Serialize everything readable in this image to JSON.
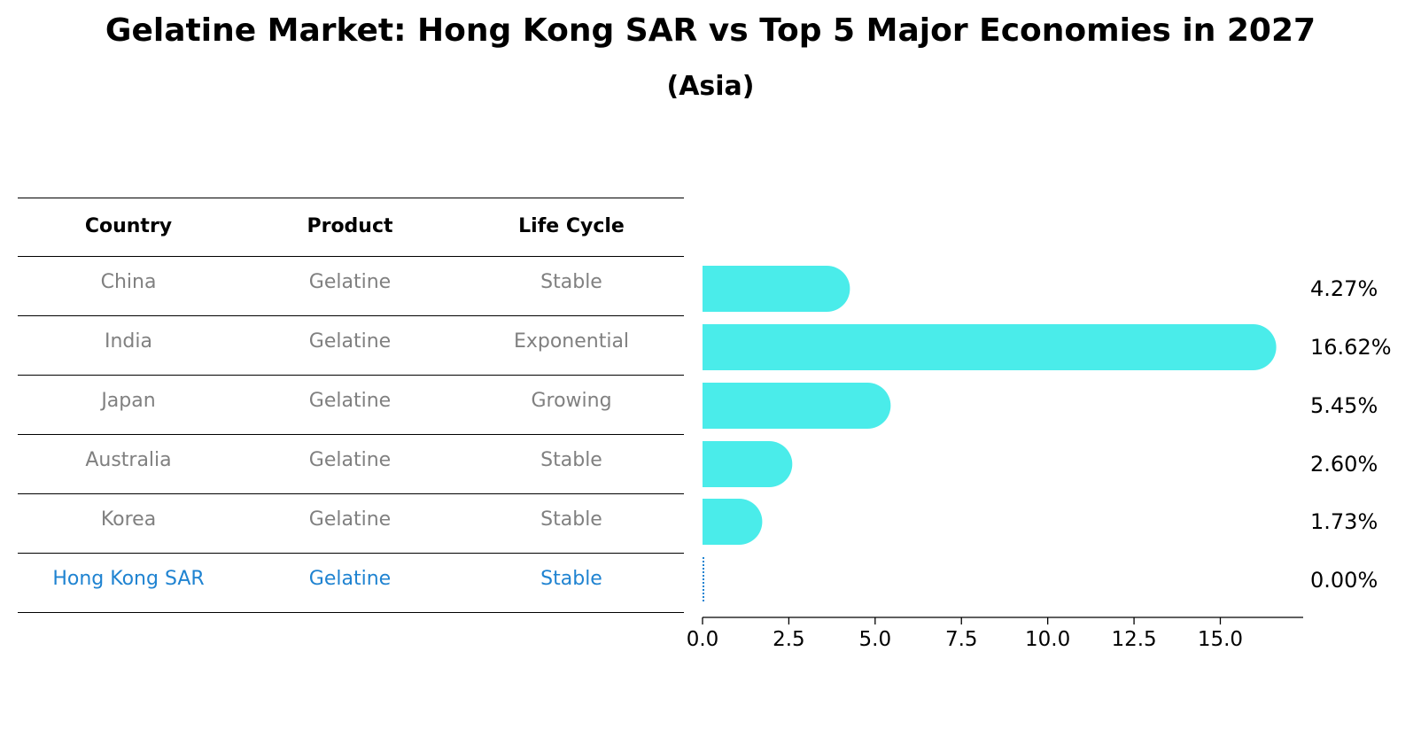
{
  "title": "Gelatine Market: Hong Kong SAR vs Top 5 Major Economies in 2027",
  "subtitle": "(Asia)",
  "table": {
    "headers": [
      "Country",
      "Product",
      "Life Cycle"
    ],
    "rows": [
      {
        "country": "China",
        "product": "Gelatine",
        "life_cycle": "Stable"
      },
      {
        "country": "India",
        "product": "Gelatine",
        "life_cycle": "Exponential"
      },
      {
        "country": "Japan",
        "product": "Gelatine",
        "life_cycle": "Growing"
      },
      {
        "country": "Australia",
        "product": "Gelatine",
        "life_cycle": "Stable"
      },
      {
        "country": "Korea",
        "product": "Gelatine",
        "life_cycle": "Stable"
      },
      {
        "country": "Hong Kong SAR",
        "product": "Gelatine",
        "life_cycle": "Stable"
      }
    ],
    "highlight_color": "#1f83d1",
    "text_color": "#808080"
  },
  "chart_data": {
    "type": "bar",
    "orientation": "horizontal",
    "categories": [
      "China",
      "India",
      "Japan",
      "Australia",
      "Korea",
      "Hong Kong SAR"
    ],
    "values": [
      4.27,
      16.62,
      5.45,
      2.6,
      1.73,
      0.0
    ],
    "value_labels": [
      "4.27%",
      "16.62%",
      "5.45%",
      "2.60%",
      "1.73%",
      "0.00%"
    ],
    "xlim": [
      0,
      17.4
    ],
    "xticks": [
      0.0,
      2.5,
      5.0,
      7.5,
      10.0,
      12.5,
      15.0
    ],
    "xtick_labels": [
      "0.0",
      "2.5",
      "5.0",
      "7.5",
      "10.0",
      "12.5",
      "15.0"
    ],
    "bar_color": "#4aecea",
    "zero_marker_color": "#1f83d1",
    "grid": false
  }
}
